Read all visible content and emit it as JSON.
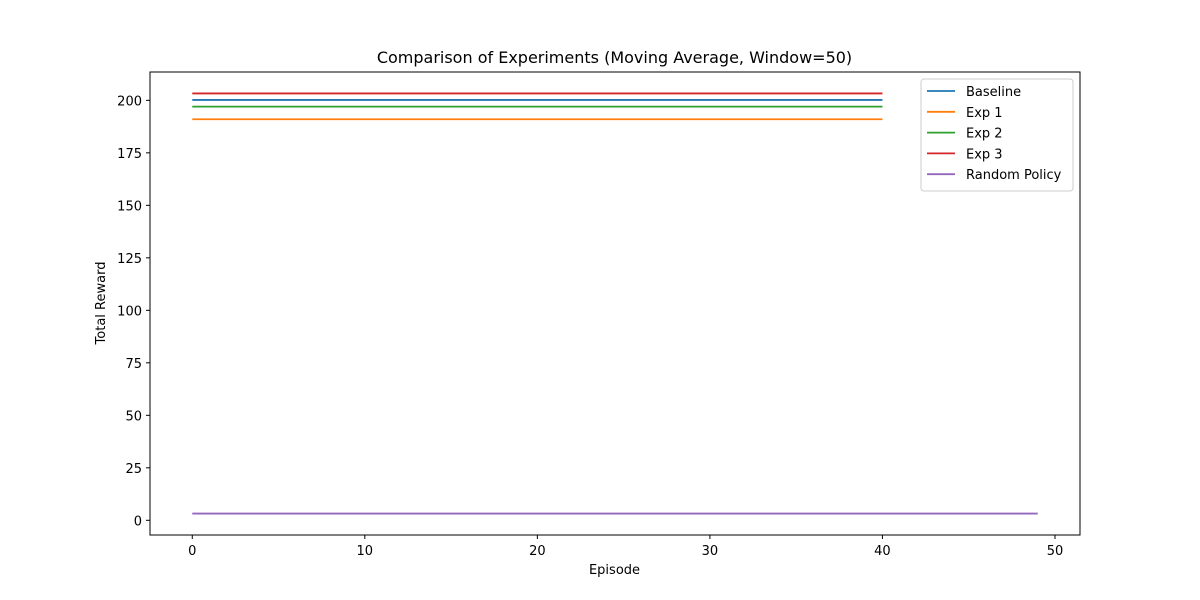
{
  "chart_data": {
    "type": "line",
    "title": "Comparison of Experiments (Moving Average, Window=50)",
    "xlabel": "Episode",
    "ylabel": "Total Reward",
    "xlim": [
      -2.45,
      51.45
    ],
    "ylim": [
      -7.0,
      213.5
    ],
    "xticks": [
      0,
      10,
      20,
      30,
      40,
      50
    ],
    "yticks": [
      0,
      25,
      50,
      75,
      100,
      125,
      150,
      175,
      200
    ],
    "grid": false,
    "legend_position": "top-right",
    "series": [
      {
        "name": "Baseline",
        "color": "#1f77b4",
        "x": [
          0,
          40
        ],
        "y": [
          200.2,
          200.2
        ]
      },
      {
        "name": "Exp 1",
        "color": "#ff7f0e",
        "x": [
          0,
          40
        ],
        "y": [
          191.0,
          191.0
        ]
      },
      {
        "name": "Exp 2",
        "color": "#2ca02c",
        "x": [
          0,
          40
        ],
        "y": [
          197.0,
          197.0
        ]
      },
      {
        "name": "Exp 3",
        "color": "#d62728",
        "x": [
          0,
          40
        ],
        "y": [
          203.3,
          203.3
        ]
      },
      {
        "name": "Random Policy",
        "color": "#9467bd",
        "x": [
          0,
          49
        ],
        "y": [
          3.2,
          3.2
        ]
      }
    ]
  }
}
